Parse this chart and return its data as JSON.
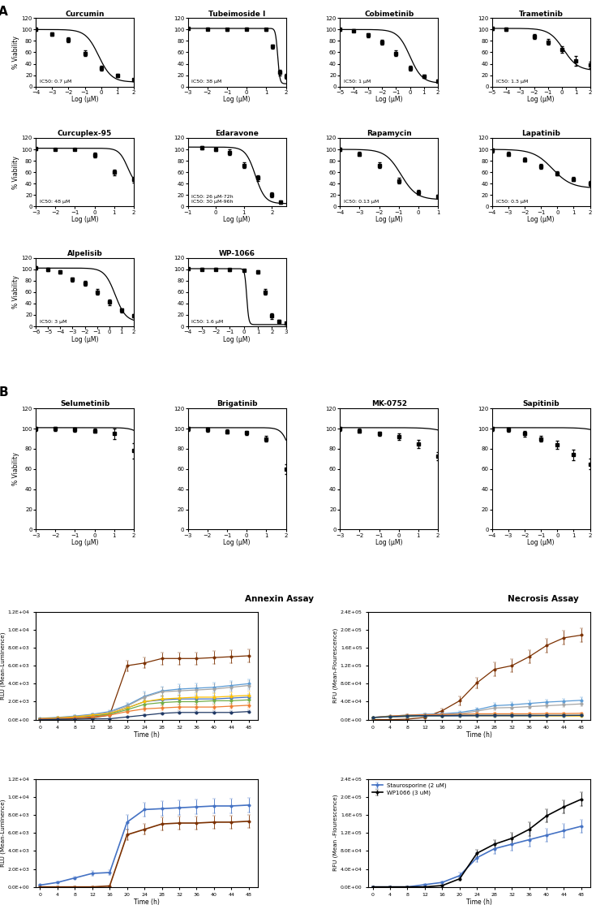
{
  "panel_A": {
    "drugs": [
      {
        "name": "Curcumin",
        "ic50_label": "IC50: 0.7 μM",
        "ic50": -0.155,
        "xmin": -4,
        "xmax": 2,
        "xticks": [
          -4,
          -3,
          -2,
          -1,
          0,
          1,
          2
        ],
        "x_data": [
          -4,
          -3,
          -2,
          -1,
          0,
          1,
          2
        ],
        "y_data": [
          100,
          92,
          82,
          58,
          32,
          20,
          12
        ],
        "yerr": [
          3,
          3,
          4,
          5,
          4,
          3,
          2
        ],
        "curve_min": 8,
        "curve_max": 100,
        "hill": 1.1
      },
      {
        "name": "Tubeimoside I",
        "ic50_label": "IC50: 38 μM",
        "ic50": 1.58,
        "xmin": -3,
        "xmax": 2,
        "xticks": [
          -3,
          -2,
          -1,
          0,
          1,
          2
        ],
        "x_data": [
          -3,
          -2,
          -1,
          0,
          1,
          1.3,
          1.7,
          2
        ],
        "y_data": [
          102,
          101,
          100,
          101,
          100,
          70,
          25,
          18
        ],
        "yerr": [
          2,
          2,
          2,
          2,
          2,
          4,
          5,
          4
        ],
        "curve_min": 5,
        "curve_max": 102,
        "hill": 8
      },
      {
        "name": "Cobimetinib",
        "ic50_label": "IC50: 1 μM",
        "ic50": 0.0,
        "xmin": -5,
        "xmax": 2,
        "xticks": [
          -5,
          -4,
          -3,
          -2,
          -1,
          0,
          1,
          2
        ],
        "x_data": [
          -5,
          -4,
          -3,
          -2,
          -1,
          0,
          1,
          2
        ],
        "y_data": [
          100,
          98,
          90,
          78,
          58,
          32,
          18,
          10
        ],
        "yerr": [
          2,
          2,
          3,
          4,
          5,
          4,
          3,
          2
        ],
        "curve_min": 6,
        "curve_max": 100,
        "hill": 1.0
      },
      {
        "name": "Trametinib",
        "ic50_label": "IC50: 1.3 μM",
        "ic50": 0.11,
        "xmin": -5,
        "xmax": 2,
        "xticks": [
          -5,
          -4,
          -3,
          -2,
          -1,
          0,
          1,
          2
        ],
        "x_data": [
          -5,
          -4,
          -2,
          -1,
          0,
          1,
          2
        ],
        "y_data": [
          102,
          100,
          88,
          78,
          65,
          45,
          38
        ],
        "yerr": [
          3,
          3,
          4,
          5,
          6,
          8,
          6
        ],
        "curve_min": 28,
        "curve_max": 102,
        "hill": 0.85
      },
      {
        "name": "Curcuplex-95",
        "ic50_label": "IC50: 48 μM",
        "ic50": 1.68,
        "xmin": -3,
        "xmax": 2,
        "xticks": [
          -3,
          -2,
          -1,
          0,
          1,
          2
        ],
        "x_data": [
          -3,
          -2,
          -1,
          0,
          1,
          2
        ],
        "y_data": [
          101,
          100,
          100,
          90,
          60,
          47
        ],
        "yerr": [
          2,
          2,
          2,
          4,
          5,
          5
        ],
        "curve_min": 35,
        "curve_max": 102,
        "hill": 2.0
      },
      {
        "name": "Edaravone",
        "ic50_label": "IC50: 26 μM-72h\nIC50: 30 μM-96h",
        "ic50": 1.41,
        "xmin": -1,
        "xmax": 2.5,
        "xticks": [
          -1,
          0,
          1,
          2
        ],
        "x_data": [
          -0.5,
          0,
          0.5,
          1,
          1.5,
          2,
          2.3
        ],
        "y_data": [
          103,
          100,
          95,
          72,
          50,
          20,
          8
        ],
        "yerr": [
          3,
          3,
          5,
          5,
          5,
          4,
          3
        ],
        "curve_min": 5,
        "curve_max": 104,
        "hill": 2.5
      },
      {
        "name": "Rapamycin",
        "ic50_label": "IC50: 0.13 μM",
        "ic50": -0.89,
        "xmin": -4,
        "xmax": 1,
        "xticks": [
          -4,
          -3,
          -2,
          -1,
          0,
          1
        ],
        "x_data": [
          -4,
          -3,
          -2,
          -1,
          0,
          1
        ],
        "y_data": [
          100,
          92,
          72,
          45,
          25,
          18
        ],
        "yerr": [
          3,
          4,
          5,
          5,
          4,
          3
        ],
        "curve_min": 12,
        "curve_max": 100,
        "hill": 1.1
      },
      {
        "name": "Lapatinib",
        "ic50_label": "IC50: 0.5 μM",
        "ic50": -0.3,
        "xmin": -4,
        "xmax": 2,
        "xticks": [
          -4,
          -3,
          -2,
          -1,
          0,
          1,
          2
        ],
        "x_data": [
          -4,
          -3,
          -2,
          -1,
          0,
          1,
          2
        ],
        "y_data": [
          98,
          92,
          82,
          70,
          58,
          48,
          40
        ],
        "yerr": [
          4,
          4,
          4,
          4,
          4,
          4,
          4
        ],
        "curve_min": 32,
        "curve_max": 100,
        "hill": 0.75
      },
      {
        "name": "Alpelisib",
        "ic50_label": "IC50: 3 μM",
        "ic50": 0.48,
        "xmin": -6,
        "xmax": 2,
        "xticks": [
          -6,
          -5,
          -4,
          -3,
          -2,
          -1,
          0,
          1,
          2
        ],
        "x_data": [
          -6,
          -5,
          -4,
          -3,
          -2,
          -1,
          0,
          1,
          2
        ],
        "y_data": [
          102,
          100,
          95,
          82,
          75,
          60,
          42,
          28,
          18
        ],
        "yerr": [
          3,
          3,
          3,
          4,
          4,
          5,
          5,
          4,
          3
        ],
        "curve_min": 8,
        "curve_max": 102,
        "hill": 1.0
      },
      {
        "name": "WP-1066",
        "ic50_label": "IC50: 1.6 μM",
        "ic50": 0.204,
        "xmin": -4,
        "xmax": 3,
        "xticks": [
          -4,
          -3,
          -2,
          -1,
          0,
          1,
          2,
          3
        ],
        "x_data": [
          -4,
          -3,
          -2,
          -1,
          0,
          1,
          1.5,
          2,
          2.5,
          3
        ],
        "y_data": [
          101,
          100,
          100,
          99,
          98,
          95,
          60,
          18,
          8,
          5
        ],
        "yerr": [
          2,
          2,
          2,
          2,
          2,
          3,
          5,
          5,
          3,
          2
        ],
        "curve_min": 3,
        "curve_max": 101,
        "hill": 6.0
      }
    ]
  },
  "panel_B": {
    "drugs": [
      {
        "name": "Selumetinib",
        "xmin": -3,
        "xmax": 2,
        "xticks": [
          -3,
          -2,
          -1,
          0,
          1,
          2
        ],
        "x_data": [
          -3,
          -2,
          -1,
          0,
          1,
          2
        ],
        "y_data": [
          100,
          100,
          99,
          98,
          95,
          78
        ],
        "yerr": [
          2,
          2,
          2,
          2,
          5,
          8
        ],
        "curve_min": 55,
        "curve_max": 101,
        "hill": 1.5,
        "ic50": 2.8
      },
      {
        "name": "Brigatinib",
        "xmin": -3,
        "xmax": 2,
        "xticks": [
          -3,
          -2,
          -1,
          0,
          1,
          2
        ],
        "x_data": [
          -3,
          -2,
          -1,
          0,
          1,
          2
        ],
        "y_data": [
          100,
          99,
          97,
          96,
          90,
          60
        ],
        "yerr": [
          2,
          2,
          2,
          2,
          3,
          5
        ],
        "curve_min": 40,
        "curve_max": 101,
        "hill": 2.0,
        "ic50": 2.3
      },
      {
        "name": "MK-0752",
        "xmin": -3,
        "xmax": 2,
        "xticks": [
          -3,
          -2,
          -1,
          0,
          1,
          2
        ],
        "x_data": [
          -3,
          -2,
          -1,
          0,
          1,
          2
        ],
        "y_data": [
          100,
          98,
          95,
          92,
          85,
          73
        ],
        "yerr": [
          2,
          2,
          2,
          3,
          4,
          4
        ],
        "curve_min": 55,
        "curve_max": 101,
        "hill": 0.85,
        "ic50": 3.5
      },
      {
        "name": "Sapitinib",
        "xmin": -4,
        "xmax": 2,
        "xticks": [
          -4,
          -3,
          -2,
          -1,
          0,
          1,
          2
        ],
        "x_data": [
          -4,
          -3,
          -2,
          -1,
          0,
          1,
          2
        ],
        "y_data": [
          100,
          99,
          95,
          90,
          84,
          74,
          65
        ],
        "yerr": [
          2,
          2,
          3,
          3,
          4,
          5,
          5
        ],
        "curve_min": 50,
        "curve_max": 101,
        "hill": 0.8,
        "ic50": 3.8
      }
    ]
  },
  "panel_C": {
    "time": [
      0,
      4,
      8,
      12,
      16,
      20,
      24,
      28,
      32,
      36,
      40,
      44,
      48
    ],
    "annexin_top": {
      "WP1066": [
        0,
        50,
        100,
        200,
        500,
        6000,
        6300,
        6800,
        6800,
        6800,
        6900,
        7000,
        7100
      ],
      "Curcumin": [
        150,
        250,
        400,
        600,
        900,
        1600,
        2600,
        3200,
        3400,
        3500,
        3600,
        3800,
        4000
      ],
      "Trametinib": [
        100,
        200,
        350,
        550,
        800,
        1500,
        2500,
        3100,
        3200,
        3300,
        3400,
        3600,
        3800
      ],
      "Alpelisib": [
        100,
        150,
        250,
        400,
        650,
        1300,
        2000,
        2200,
        2300,
        2300,
        2300,
        2400,
        2500
      ],
      "Rapamycin": [
        100,
        200,
        300,
        500,
        700,
        1300,
        2000,
        2300,
        2400,
        2500,
        2500,
        2600,
        2700
      ],
      "Cobemetinib": [
        100,
        150,
        200,
        350,
        600,
        1100,
        1700,
        1900,
        2000,
        2000,
        2100,
        2100,
        2200
      ],
      "Curcuplex": [
        100,
        150,
        200,
        300,
        500,
        900,
        1200,
        1300,
        1400,
        1400,
        1400,
        1500,
        1600
      ],
      "Lapatinib": [
        0,
        30,
        50,
        80,
        100,
        300,
        500,
        700,
        800,
        800,
        800,
        800,
        900
      ]
    },
    "annexin_bottom": {
      "Staurosporine": [
        200,
        500,
        1000,
        1500,
        1600,
        7200,
        8600,
        8700,
        8800,
        8900,
        9000,
        9000,
        9100
      ],
      "WP1066": [
        0,
        0,
        0,
        0,
        100,
        5800,
        6400,
        7000,
        7100,
        7100,
        7200,
        7200,
        7300
      ]
    },
    "necrosis_top": {
      "WP1066": [
        0,
        0,
        1000,
        5000,
        20000,
        42000,
        82000,
        112000,
        120000,
        140000,
        165000,
        182000,
        188000
      ],
      "Curcumin": [
        5000,
        8000,
        10000,
        12000,
        13000,
        16000,
        22000,
        31000,
        33000,
        36000,
        39000,
        41000,
        43000
      ],
      "Trametinib": [
        5000,
        7000,
        9000,
        10000,
        11000,
        13000,
        19000,
        26000,
        27000,
        29000,
        31000,
        33000,
        35000
      ],
      "Curcuplex": [
        5000,
        8000,
        10000,
        11000,
        11500,
        12000,
        13000,
        13000,
        13000,
        13000,
        13500,
        13500,
        14000
      ],
      "Rapamycin": [
        5000,
        6000,
        7000,
        8000,
        8000,
        8000,
        8000,
        8000,
        8000,
        8000,
        8000,
        8000,
        8000
      ],
      "Alpelisib": [
        5000,
        6000,
        7000,
        8000,
        8000,
        8000,
        8500,
        8500,
        8500,
        8500,
        9000,
        9000,
        9500
      ],
      "Cobemetinib": [
        5000,
        6500,
        8500,
        9000,
        9000,
        9500,
        9500,
        9500,
        9500,
        9500,
        9500,
        9500,
        9500
      ],
      "Lapatinib": [
        5000,
        6500,
        8500,
        9000,
        9000,
        9500,
        9500,
        9500,
        9500,
        9500,
        9500,
        9500,
        9500
      ]
    },
    "necrosis_bottom": {
      "Staurosporine": [
        0,
        0,
        0,
        5000,
        10000,
        25000,
        65000,
        85000,
        95000,
        105000,
        115000,
        125000,
        135000
      ],
      "WP1066": [
        0,
        0,
        0,
        0,
        3000,
        18000,
        75000,
        95000,
        108000,
        128000,
        158000,
        178000,
        195000
      ]
    },
    "annexin_top_err": {
      "WP1066": [
        30,
        30,
        50,
        100,
        200,
        600,
        600,
        700,
        700,
        700,
        700,
        700,
        700
      ],
      "Curcumin": [
        30,
        50,
        80,
        120,
        150,
        300,
        500,
        500,
        500,
        500,
        500,
        500,
        500
      ],
      "Trametinib": [
        30,
        50,
        80,
        120,
        150,
        300,
        450,
        500,
        500,
        500,
        500,
        500,
        500
      ],
      "Alpelisib": [
        30,
        40,
        60,
        80,
        120,
        200,
        300,
        350,
        350,
        350,
        350,
        350,
        350
      ],
      "Rapamycin": [
        30,
        50,
        80,
        100,
        150,
        250,
        350,
        400,
        400,
        400,
        400,
        400,
        400
      ],
      "Cobemetinib": [
        30,
        40,
        60,
        80,
        120,
        200,
        300,
        300,
        300,
        300,
        300,
        300,
        300
      ],
      "Curcuplex": [
        30,
        40,
        60,
        80,
        100,
        150,
        200,
        250,
        250,
        250,
        250,
        250,
        250
      ],
      "Lapatinib": [
        20,
        20,
        20,
        20,
        30,
        60,
        80,
        120,
        120,
        120,
        120,
        120,
        120
      ]
    },
    "annexin_bottom_err": {
      "Staurosporine": [
        80,
        120,
        150,
        250,
        300,
        800,
        800,
        800,
        800,
        800,
        800,
        800,
        800
      ],
      "WP1066": [
        20,
        20,
        20,
        20,
        50,
        600,
        600,
        700,
        700,
        700,
        700,
        700,
        700
      ]
    },
    "necrosis_top_err": {
      "WP1066": [
        500,
        500,
        1000,
        2000,
        5000,
        10000,
        12000,
        15000,
        15000,
        15000,
        15000,
        15000,
        15000
      ],
      "Curcumin": [
        500,
        1000,
        1500,
        2000,
        2000,
        3000,
        5000,
        6000,
        6000,
        6000,
        6000,
        6000,
        6000
      ],
      "Trametinib": [
        500,
        1000,
        1500,
        2000,
        2000,
        3000,
        4000,
        5000,
        5000,
        5000,
        5000,
        5000,
        5000
      ],
      "Curcuplex": [
        500,
        1000,
        1500,
        2000,
        2000,
        2000,
        2000,
        2000,
        2000,
        2000,
        2000,
        2000,
        2000
      ],
      "Rapamycin": [
        500,
        800,
        1000,
        1500,
        1500,
        1500,
        1500,
        1500,
        1500,
        1500,
        1500,
        1500,
        1500
      ],
      "Alpelisib": [
        500,
        800,
        1000,
        1500,
        1500,
        1500,
        1500,
        1500,
        1500,
        1500,
        1500,
        1500,
        1500
      ],
      "Cobemetinib": [
        500,
        800,
        1000,
        1500,
        1500,
        1500,
        1500,
        1500,
        1500,
        1500,
        1500,
        1500,
        1500
      ],
      "Lapatinib": [
        500,
        800,
        1000,
        1500,
        1500,
        1500,
        1500,
        1500,
        1500,
        1500,
        1500,
        1500,
        1500
      ]
    },
    "necrosis_bottom_err": {
      "Staurosporine": [
        500,
        500,
        500,
        1500,
        2500,
        7000,
        10000,
        12000,
        15000,
        15000,
        15000,
        15000,
        15000
      ],
      "WP1066": [
        500,
        500,
        500,
        500,
        800,
        4000,
        8000,
        10000,
        12000,
        15000,
        15000,
        15000,
        15000
      ]
    },
    "colors": {
      "Curcumin": "#5B9BD5",
      "Curcuplex": "#ED7D31",
      "Trametinib": "#A5A5A5",
      "Rapamycin": "#FFC000",
      "Alpelisib": "#4472C4",
      "Cobemetinib": "#70AD47",
      "Lapatinib": "#1F3864",
      "WP1066": "#7B3000",
      "Staurosporine": "#4472C4"
    }
  }
}
